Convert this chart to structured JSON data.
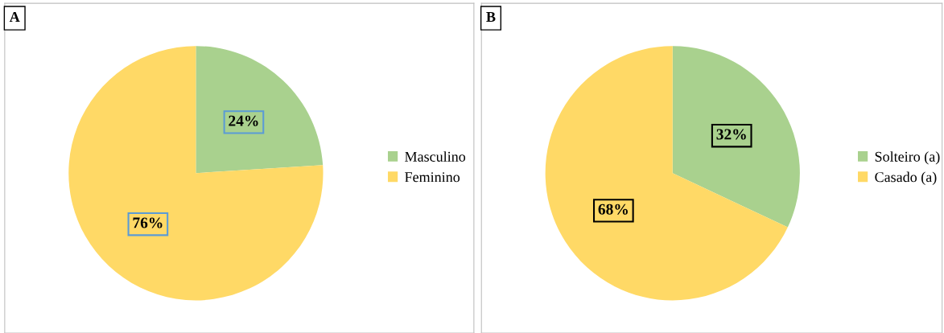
{
  "chart_data": [
    {
      "type": "pie",
      "title": "A",
      "categories": [
        "Masculino",
        "Feminino"
      ],
      "values": [
        24,
        76
      ],
      "colors": [
        "#a9d18e",
        "#ffd966"
      ],
      "value_labels": [
        "24%",
        "76%"
      ],
      "legend": "right"
    },
    {
      "type": "pie",
      "title": "B",
      "categories": [
        "Solteiro (a)",
        "Casado (a)"
      ],
      "values": [
        32,
        68
      ],
      "colors": [
        "#a9d18e",
        "#ffd966"
      ],
      "value_labels": [
        "32%",
        "68%"
      ],
      "legend": "right"
    }
  ]
}
